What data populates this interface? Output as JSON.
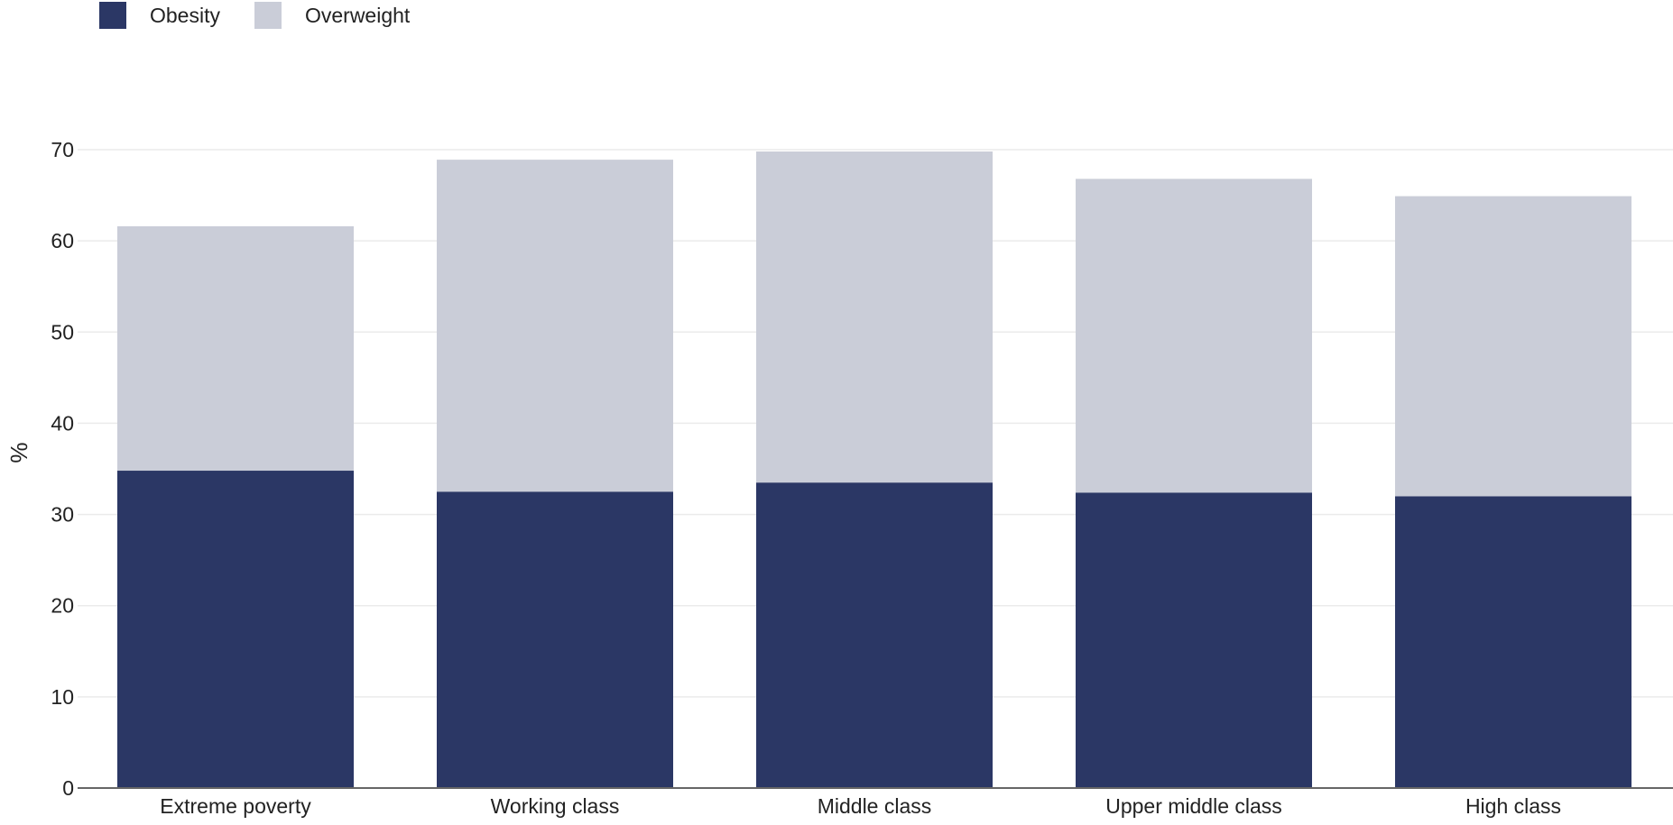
{
  "chart_data": {
    "type": "bar",
    "stacked": true,
    "categories": [
      "Extreme poverty",
      "Working class",
      "Middle class",
      "Upper middle class",
      "High class"
    ],
    "series": [
      {
        "name": "Obesity",
        "color": "#2b3765",
        "values": [
          34.8,
          32.5,
          33.5,
          32.4,
          32.0
        ]
      },
      {
        "name": "Overweight",
        "color": "#cacdd8",
        "values": [
          26.8,
          36.4,
          36.3,
          34.4,
          32.9
        ]
      }
    ],
    "ylabel": "%",
    "ylim": [
      0,
      70
    ],
    "yticks": [
      0,
      10,
      20,
      30,
      40,
      50,
      60,
      70
    ],
    "grid": true,
    "legend_position": "top-left"
  }
}
